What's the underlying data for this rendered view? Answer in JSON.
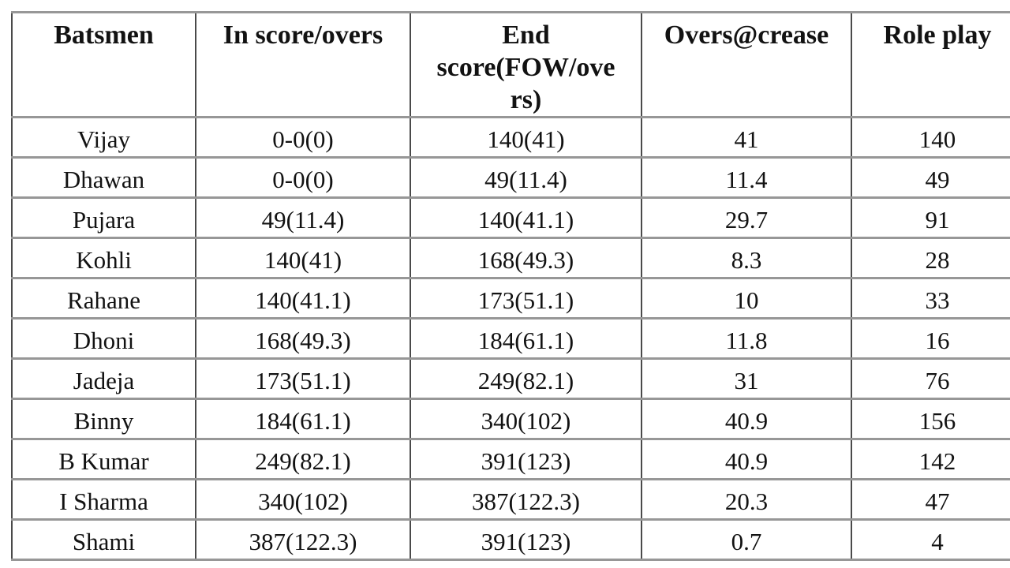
{
  "chart_data": {
    "type": "table",
    "columns": [
      "Batsmen",
      "In score/overs",
      "End score(FOW/overs)",
      "Overs@crease",
      "Role play"
    ],
    "rows": [
      [
        "Vijay",
        "0-0(0)",
        "140(41)",
        "41",
        "140"
      ],
      [
        "Dhawan",
        "0-0(0)",
        "49(11.4)",
        "11.4",
        "49"
      ],
      [
        "Pujara",
        "49(11.4)",
        "140(41.1)",
        "29.7",
        "91"
      ],
      [
        "Kohli",
        "140(41)",
        "168(49.3)",
        "8.3",
        "28"
      ],
      [
        "Rahane",
        "140(41.1)",
        "173(51.1)",
        "10",
        "33"
      ],
      [
        "Dhoni",
        "168(49.3)",
        "184(61.1)",
        "11.8",
        "16"
      ],
      [
        "Jadeja",
        "173(51.1)",
        "249(82.1)",
        "31",
        "76"
      ],
      [
        "Binny",
        "184(61.1)",
        "340(102)",
        "40.9",
        "156"
      ],
      [
        "B Kumar",
        "249(82.1)",
        "391(123)",
        "40.9",
        "142"
      ],
      [
        "I Sharma",
        "340(102)",
        "387(122.3)",
        "20.3",
        "47"
      ],
      [
        "Shami",
        "387(122.3)",
        "391(123)",
        "0.7",
        "4"
      ]
    ],
    "layout": {
      "grid": "full",
      "horizontal_rule_color": "#979797",
      "vertical_rule_color": "#4a4a4a",
      "text_color": "#121212",
      "background": "#ffffff",
      "right_edge_cropped": true
    }
  }
}
